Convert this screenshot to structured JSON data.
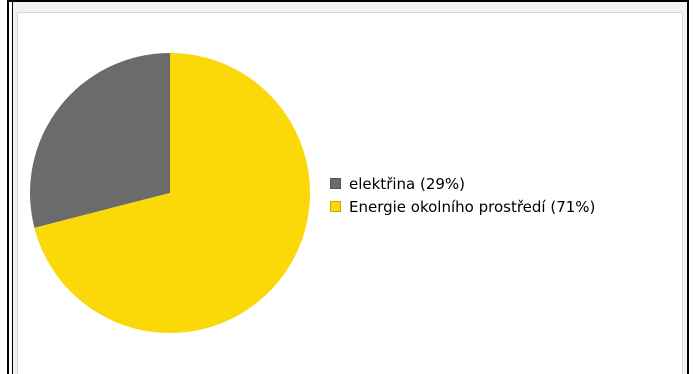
{
  "chart_data": {
    "type": "pie",
    "title": "",
    "slices": [
      {
        "label": "elektřina",
        "value": 29,
        "display": "elektřina (29%)",
        "color": "#6b6b6b"
      },
      {
        "label": "Energie okolního prostředí",
        "value": 71,
        "display": "Energie okolního prostředí (71%)",
        "color": "#fbd807"
      }
    ],
    "legend_position": "right"
  }
}
